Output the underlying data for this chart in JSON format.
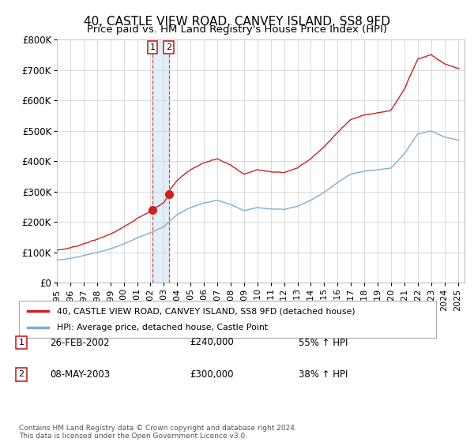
{
  "title": "40, CASTLE VIEW ROAD, CANVEY ISLAND, SS8 9FD",
  "subtitle": "Price paid vs. HM Land Registry's House Price Index (HPI)",
  "ylim": [
    0,
    800000
  ],
  "yticks": [
    0,
    100000,
    200000,
    300000,
    400000,
    500000,
    600000,
    700000,
    800000
  ],
  "ytick_labels": [
    "£0",
    "£100K",
    "£200K",
    "£300K",
    "£400K",
    "£500K",
    "£600K",
    "£700K",
    "£800K"
  ],
  "hpi_color": "#7bafd4",
  "price_color": "#cc2222",
  "vline_color": "#cc2222",
  "shade_color": "#d0e4f5",
  "transaction1_year": 2002.15,
  "transaction1_price": 240000,
  "transaction2_year": 2003.37,
  "transaction2_price": 300000,
  "legend_line1": "40, CASTLE VIEW ROAD, CANVEY ISLAND, SS8 9FD (detached house)",
  "legend_line2": "HPI: Average price, detached house, Castle Point",
  "table_entries": [
    {
      "num": "1",
      "date": "26-FEB-2002",
      "price": "£240,000",
      "hpi": "55% ↑ HPI"
    },
    {
      "num": "2",
      "date": "08-MAY-2003",
      "price": "£300,000",
      "hpi": "38% ↑ HPI"
    }
  ],
  "footer": "Contains HM Land Registry data © Crown copyright and database right 2024.\nThis data is licensed under the Open Government Licence v3.0.",
  "background_color": "#ffffff",
  "grid_color": "#cccccc",
  "title_fontsize": 11,
  "tick_fontsize": 8.5
}
